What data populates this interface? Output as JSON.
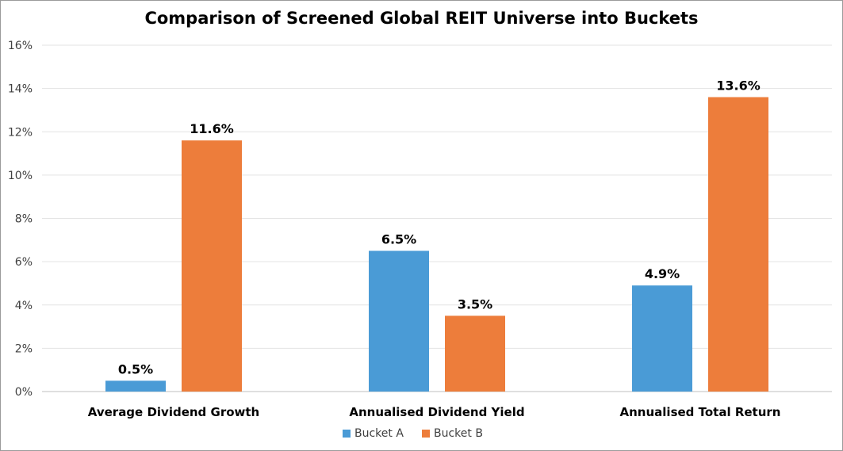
{
  "chart_data": {
    "type": "bar",
    "title": "Comparison of Screened Global REIT Universe into Buckets",
    "xlabel": "",
    "ylabel": "",
    "categories": [
      "Average Dividend Growth",
      "Annualised Dividend Yield",
      "Annualised Total Return"
    ],
    "series": [
      {
        "name": "Bucket A",
        "values": [
          0.5,
          6.5,
          4.9
        ],
        "labels": [
          "0.5%",
          "6.5%",
          "4.9%"
        ],
        "color": "#4a9bd6"
      },
      {
        "name": "Bucket B",
        "values": [
          11.6,
          3.5,
          13.6
        ],
        "labels": [
          "11.6%",
          "3.5%",
          "13.6%"
        ],
        "color": "#ed7d3b"
      }
    ],
    "ylim": [
      0,
      16
    ],
    "yticks": [
      0,
      2,
      4,
      6,
      8,
      10,
      12,
      14,
      16
    ],
    "ytick_labels": [
      "0%",
      "2%",
      "4%",
      "6%",
      "8%",
      "10%",
      "12%",
      "14%",
      "16%"
    ],
    "grid": true,
    "legend": "bottom"
  }
}
